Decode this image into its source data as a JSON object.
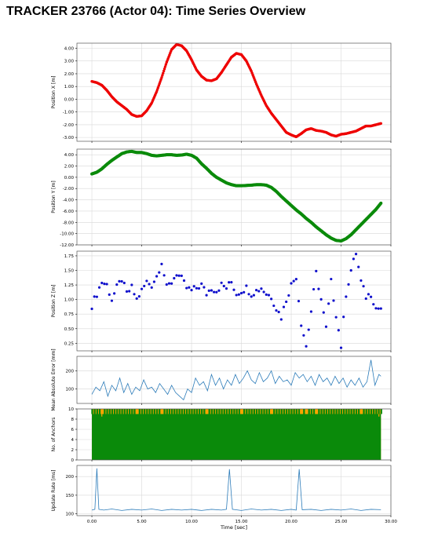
{
  "title": "TRACKER 23766 (Actor 04): Time Series Overview",
  "colors": {
    "x": "#ee0000",
    "y": "#0a8a0a",
    "z": "#1010cc",
    "mae": "#2b7bb9",
    "anchors": "#0a8a0a",
    "anchors_missing": "#ffa500",
    "rate": "#2b7bb9",
    "grid": "#d8d8d8",
    "frame": "#555555"
  },
  "chart_data": [
    {
      "id": "px",
      "type": "scatter",
      "ylabel": "Position X [m]",
      "ylim": [
        -3.3,
        4.4
      ],
      "yticks": [
        "4.00",
        "3.00",
        "2.00",
        "1.00",
        "0.00",
        "-1.00",
        "-2.00",
        "-3.00"
      ],
      "ytick_values": [
        4,
        3,
        2,
        1,
        0,
        -1,
        -2,
        -3
      ],
      "grid": true,
      "xlim": [
        -1.5,
        30
      ],
      "xticks": [
        0,
        5,
        10,
        15,
        20,
        25,
        30
      ],
      "show_xticks": false,
      "points": [
        [
          0,
          1.4
        ],
        [
          0.5,
          1.3
        ],
        [
          1,
          1.1
        ],
        [
          1.5,
          0.7
        ],
        [
          2,
          0.2
        ],
        [
          2.5,
          -0.2
        ],
        [
          3,
          -0.5
        ],
        [
          3.5,
          -0.8
        ],
        [
          4,
          -1.2
        ],
        [
          4.5,
          -1.35
        ],
        [
          5,
          -1.3
        ],
        [
          5.5,
          -0.9
        ],
        [
          6,
          -0.3
        ],
        [
          6.5,
          0.6
        ],
        [
          7,
          1.7
        ],
        [
          7.5,
          2.9
        ],
        [
          8,
          3.9
        ],
        [
          8.5,
          4.3
        ],
        [
          9,
          4.2
        ],
        [
          9.5,
          3.8
        ],
        [
          10,
          3.1
        ],
        [
          10.5,
          2.3
        ],
        [
          11,
          1.8
        ],
        [
          11.5,
          1.5
        ],
        [
          12,
          1.45
        ],
        [
          12.5,
          1.6
        ],
        [
          13,
          2.1
        ],
        [
          13.5,
          2.7
        ],
        [
          14,
          3.3
        ],
        [
          14.5,
          3.6
        ],
        [
          15,
          3.5
        ],
        [
          15.5,
          3.0
        ],
        [
          16,
          2.2
        ],
        [
          16.5,
          1.2
        ],
        [
          17,
          0.3
        ],
        [
          17.5,
          -0.5
        ],
        [
          18,
          -1.1
        ],
        [
          18.5,
          -1.6
        ],
        [
          19,
          -2.1
        ],
        [
          19.5,
          -2.6
        ],
        [
          20,
          -2.8
        ],
        [
          20.5,
          -2.95
        ],
        [
          21,
          -2.7
        ],
        [
          21.5,
          -2.4
        ],
        [
          22,
          -2.3
        ],
        [
          22.5,
          -2.45
        ],
        [
          23,
          -2.5
        ],
        [
          23.5,
          -2.6
        ],
        [
          24,
          -2.8
        ],
        [
          24.5,
          -2.9
        ],
        [
          25,
          -2.75
        ],
        [
          25.5,
          -2.7
        ],
        [
          26,
          -2.6
        ],
        [
          26.5,
          -2.5
        ],
        [
          27,
          -2.3
        ],
        [
          27.5,
          -2.1
        ],
        [
          28,
          -2.1
        ],
        [
          28.5,
          -2.0
        ],
        [
          29,
          -1.9
        ]
      ]
    },
    {
      "id": "py",
      "type": "scatter",
      "ylabel": "Position Y [m]",
      "ylim": [
        -12,
        5
      ],
      "yticks": [
        "4.00",
        "2.00",
        "0.00",
        "-2.00",
        "-4.00",
        "-6.00",
        "-8.00",
        "-10.00",
        "-12.00"
      ],
      "ytick_values": [
        4,
        2,
        0,
        -2,
        -4,
        -6,
        -8,
        -10,
        -12
      ],
      "grid": true,
      "xlim": [
        -1.5,
        30
      ],
      "xticks": [
        0,
        5,
        10,
        15,
        20,
        25,
        30
      ],
      "show_xticks": false,
      "points": [
        [
          0,
          0.6
        ],
        [
          0.5,
          0.9
        ],
        [
          1,
          1.5
        ],
        [
          1.5,
          2.3
        ],
        [
          2,
          3.0
        ],
        [
          2.5,
          3.6
        ],
        [
          3,
          4.2
        ],
        [
          3.5,
          4.5
        ],
        [
          4,
          4.6
        ],
        [
          4.5,
          4.4
        ],
        [
          5,
          4.4
        ],
        [
          5.5,
          4.2
        ],
        [
          6,
          3.9
        ],
        [
          6.5,
          3.8
        ],
        [
          7,
          3.9
        ],
        [
          7.5,
          4.0
        ],
        [
          8,
          4.0
        ],
        [
          8.5,
          3.9
        ],
        [
          9,
          3.95
        ],
        [
          9.5,
          4.1
        ],
        [
          10,
          3.9
        ],
        [
          10.5,
          3.4
        ],
        [
          11,
          2.4
        ],
        [
          11.5,
          1.6
        ],
        [
          12,
          0.7
        ],
        [
          12.5,
          0.0
        ],
        [
          13,
          -0.5
        ],
        [
          13.5,
          -1.0
        ],
        [
          14,
          -1.3
        ],
        [
          14.5,
          -1.5
        ],
        [
          15,
          -1.5
        ],
        [
          15.5,
          -1.45
        ],
        [
          16,
          -1.4
        ],
        [
          16.5,
          -1.3
        ],
        [
          17,
          -1.3
        ],
        [
          17.5,
          -1.4
        ],
        [
          18,
          -1.8
        ],
        [
          18.5,
          -2.5
        ],
        [
          19,
          -3.4
        ],
        [
          19.5,
          -4.2
        ],
        [
          20,
          -5.0
        ],
        [
          20.5,
          -5.8
        ],
        [
          21,
          -6.5
        ],
        [
          21.5,
          -7.3
        ],
        [
          22,
          -8.0
        ],
        [
          22.5,
          -8.8
        ],
        [
          23,
          -9.5
        ],
        [
          23.5,
          -10.2
        ],
        [
          24,
          -10.8
        ],
        [
          24.5,
          -11.2
        ],
        [
          25,
          -11.3
        ],
        [
          25.5,
          -10.9
        ],
        [
          26,
          -10.2
        ],
        [
          26.5,
          -9.3
        ],
        [
          27,
          -8.4
        ],
        [
          27.5,
          -7.5
        ],
        [
          28,
          -6.6
        ],
        [
          28.5,
          -5.7
        ],
        [
          29,
          -4.6
        ]
      ]
    },
    {
      "id": "pz",
      "type": "scatter",
      "ylabel": "Position Z [m]",
      "ylim": [
        0.12,
        1.83
      ],
      "yticks": [
        "1.75",
        "1.50",
        "1.25",
        "1.00",
        "0.75",
        "0.50",
        "0.25"
      ],
      "ytick_values": [
        1.75,
        1.5,
        1.25,
        1.0,
        0.75,
        0.5,
        0.25
      ],
      "grid": true,
      "xlim": [
        -1.5,
        30
      ],
      "xticks": [
        0,
        5,
        10,
        15,
        20,
        25,
        30
      ],
      "show_xticks": false,
      "points": [
        [
          0,
          0.9
        ],
        [
          0.5,
          1.1
        ],
        [
          1,
          1.3
        ],
        [
          1.5,
          1.25
        ],
        [
          2,
          1.0
        ],
        [
          2.5,
          1.2
        ],
        [
          3,
          1.35
        ],
        [
          3.5,
          1.1
        ],
        [
          4,
          1.2
        ],
        [
          4.5,
          1.0
        ],
        [
          5,
          1.15
        ],
        [
          5.5,
          1.3
        ],
        [
          6,
          1.25
        ],
        [
          6.5,
          1.4
        ],
        [
          7,
          1.65
        ],
        [
          7.5,
          1.2
        ],
        [
          8,
          1.3
        ],
        [
          8.5,
          1.45
        ],
        [
          9,
          1.35
        ],
        [
          9.5,
          1.2
        ],
        [
          10,
          1.15
        ],
        [
          10.5,
          1.2
        ],
        [
          11,
          1.25
        ],
        [
          11.5,
          1.1
        ],
        [
          12,
          1.2
        ],
        [
          12.5,
          1.15
        ],
        [
          13,
          1.25
        ],
        [
          13.5,
          1.2
        ],
        [
          14,
          1.3
        ],
        [
          14.5,
          1.1
        ],
        [
          15,
          1.15
        ],
        [
          15.5,
          1.2
        ],
        [
          16,
          1.1
        ],
        [
          16.5,
          1.15
        ],
        [
          17,
          1.2
        ],
        [
          17.5,
          1.1
        ],
        [
          18,
          1.05
        ],
        [
          18.5,
          0.85
        ],
        [
          19,
          0.7
        ],
        [
          19.5,
          1.0
        ],
        [
          20,
          1.25
        ],
        [
          20.5,
          1.4
        ],
        [
          21,
          0.6
        ],
        [
          21.5,
          0.2
        ],
        [
          22,
          0.8
        ],
        [
          22.5,
          1.45
        ],
        [
          23,
          1.0
        ],
        [
          23.5,
          0.5
        ],
        [
          24,
          1.3
        ],
        [
          24.5,
          0.75
        ],
        [
          25,
          0.2
        ],
        [
          25.5,
          1.1
        ],
        [
          26,
          1.5
        ],
        [
          26.5,
          1.8
        ],
        [
          27,
          1.3
        ],
        [
          27.5,
          1.05
        ],
        [
          28,
          1.1
        ],
        [
          28.5,
          0.85
        ],
        [
          29,
          0.85
        ]
      ]
    },
    {
      "id": "mae",
      "type": "line",
      "ylabel": "Mean Absolute Error [mm]",
      "ylim": [
        20,
        280
      ],
      "yticks": [
        "200",
        "100"
      ],
      "ytick_values": [
        200,
        100
      ],
      "grid": true,
      "xlim": [
        -1.5,
        30
      ],
      "xticks": [
        0,
        5,
        10,
        15,
        20,
        25,
        30
      ],
      "show_xticks": false,
      "points": [
        [
          0,
          70
        ],
        [
          0.4,
          110
        ],
        [
          0.8,
          90
        ],
        [
          1.2,
          140
        ],
        [
          1.6,
          60
        ],
        [
          2,
          120
        ],
        [
          2.4,
          90
        ],
        [
          2.8,
          160
        ],
        [
          3.2,
          80
        ],
        [
          3.6,
          130
        ],
        [
          4,
          70
        ],
        [
          4.4,
          110
        ],
        [
          4.8,
          90
        ],
        [
          5.2,
          150
        ],
        [
          5.6,
          100
        ],
        [
          6,
          110
        ],
        [
          6.4,
          80
        ],
        [
          6.8,
          130
        ],
        [
          7.2,
          100
        ],
        [
          7.6,
          70
        ],
        [
          8,
          120
        ],
        [
          8.4,
          80
        ],
        [
          8.8,
          60
        ],
        [
          9.2,
          40
        ],
        [
          9.6,
          100
        ],
        [
          10,
          80
        ],
        [
          10.4,
          160
        ],
        [
          10.8,
          120
        ],
        [
          11.2,
          140
        ],
        [
          11.6,
          90
        ],
        [
          12,
          180
        ],
        [
          12.4,
          120
        ],
        [
          12.8,
          160
        ],
        [
          13.2,
          100
        ],
        [
          13.6,
          150
        ],
        [
          14,
          120
        ],
        [
          14.4,
          180
        ],
        [
          14.8,
          130
        ],
        [
          15.2,
          160
        ],
        [
          15.6,
          200
        ],
        [
          16,
          150
        ],
        [
          16.4,
          130
        ],
        [
          16.8,
          190
        ],
        [
          17.2,
          140
        ],
        [
          17.6,
          160
        ],
        [
          18,
          200
        ],
        [
          18.4,
          130
        ],
        [
          18.8,
          170
        ],
        [
          19.2,
          140
        ],
        [
          19.6,
          150
        ],
        [
          20,
          120
        ],
        [
          20.4,
          190
        ],
        [
          20.8,
          160
        ],
        [
          21.2,
          180
        ],
        [
          21.6,
          140
        ],
        [
          22,
          170
        ],
        [
          22.4,
          120
        ],
        [
          22.8,
          180
        ],
        [
          23.2,
          140
        ],
        [
          23.6,
          160
        ],
        [
          24,
          120
        ],
        [
          24.4,
          170
        ],
        [
          24.8,
          130
        ],
        [
          25.2,
          160
        ],
        [
          25.6,
          110
        ],
        [
          26,
          150
        ],
        [
          26.4,
          120
        ],
        [
          26.8,
          160
        ],
        [
          27.2,
          110
        ],
        [
          27.6,
          140
        ],
        [
          28,
          260
        ],
        [
          28.4,
          120
        ],
        [
          28.8,
          180
        ],
        [
          29,
          170
        ]
      ]
    },
    {
      "id": "anchors",
      "type": "bar",
      "ylabel": "No. of Anchors",
      "ylim": [
        0,
        10
      ],
      "yticks": [
        "10",
        "8",
        "6",
        "4",
        "2",
        "0"
      ],
      "ytick_values": [
        10,
        8,
        6,
        4,
        2,
        0
      ],
      "grid": true,
      "xlim": [
        -1.5,
        30
      ],
      "xticks": [
        0,
        5,
        10,
        15,
        20,
        25,
        30
      ],
      "show_xticks": false,
      "full_value": 10,
      "range": [
        0,
        29
      ],
      "dips": [
        [
          0.2,
          9
        ],
        [
          0.6,
          9
        ],
        [
          1.0,
          8.5
        ],
        [
          1.4,
          9
        ],
        [
          4.5,
          9
        ],
        [
          6.3,
          9
        ],
        [
          6.6,
          9
        ],
        [
          7.0,
          9
        ],
        [
          11.5,
          9
        ],
        [
          13.2,
          9
        ],
        [
          15.0,
          9
        ],
        [
          16.3,
          9
        ],
        [
          18.0,
          9
        ],
        [
          20.3,
          9
        ],
        [
          21.0,
          9
        ],
        [
          21.5,
          9
        ],
        [
          21.8,
          9
        ],
        [
          22.2,
          9
        ],
        [
          22.5,
          9
        ],
        [
          22.8,
          9
        ],
        [
          23.2,
          9
        ],
        [
          23.6,
          9
        ],
        [
          24.1,
          9
        ],
        [
          27.0,
          9
        ],
        [
          27.8,
          9
        ],
        [
          28.4,
          9
        ],
        [
          28.8,
          8.5
        ]
      ]
    },
    {
      "id": "rate",
      "type": "line",
      "ylabel": "Update Rate [ms]",
      "ylim": [
        95,
        230
      ],
      "yticks": [
        "200",
        "150",
        "100"
      ],
      "ytick_values": [
        200,
        150,
        100
      ],
      "grid": true,
      "xlim": [
        -1.5,
        30
      ],
      "xticks": [
        0,
        5,
        10,
        15,
        20,
        25,
        30
      ],
      "show_xticks": true,
      "xticklabels": [
        "0.00",
        "5.00",
        "10.00",
        "15.00",
        "20.00",
        "25.00",
        "30.00"
      ],
      "xlabel": "Time [sec]",
      "points": [
        [
          0,
          110
        ],
        [
          0.3,
          112
        ],
        [
          0.5,
          222
        ],
        [
          0.7,
          112
        ],
        [
          1.2,
          110
        ],
        [
          2,
          113
        ],
        [
          3,
          109
        ],
        [
          4,
          112
        ],
        [
          5,
          110
        ],
        [
          6,
          113
        ],
        [
          7,
          109
        ],
        [
          8,
          112
        ],
        [
          9,
          110
        ],
        [
          10,
          112
        ],
        [
          11,
          109
        ],
        [
          12,
          112
        ],
        [
          13,
          110
        ],
        [
          13.5,
          112
        ],
        [
          13.8,
          220
        ],
        [
          14.1,
          112
        ],
        [
          15,
          109
        ],
        [
          16,
          113
        ],
        [
          17,
          110
        ],
        [
          18,
          112
        ],
        [
          19,
          109
        ],
        [
          20,
          112
        ],
        [
          20.5,
          110
        ],
        [
          20.8,
          220
        ],
        [
          21.1,
          111
        ],
        [
          22,
          112
        ],
        [
          23,
          109
        ],
        [
          24,
          112
        ],
        [
          25,
          110
        ],
        [
          26,
          113
        ],
        [
          27,
          109
        ],
        [
          28,
          112
        ],
        [
          29,
          111
        ]
      ]
    }
  ]
}
